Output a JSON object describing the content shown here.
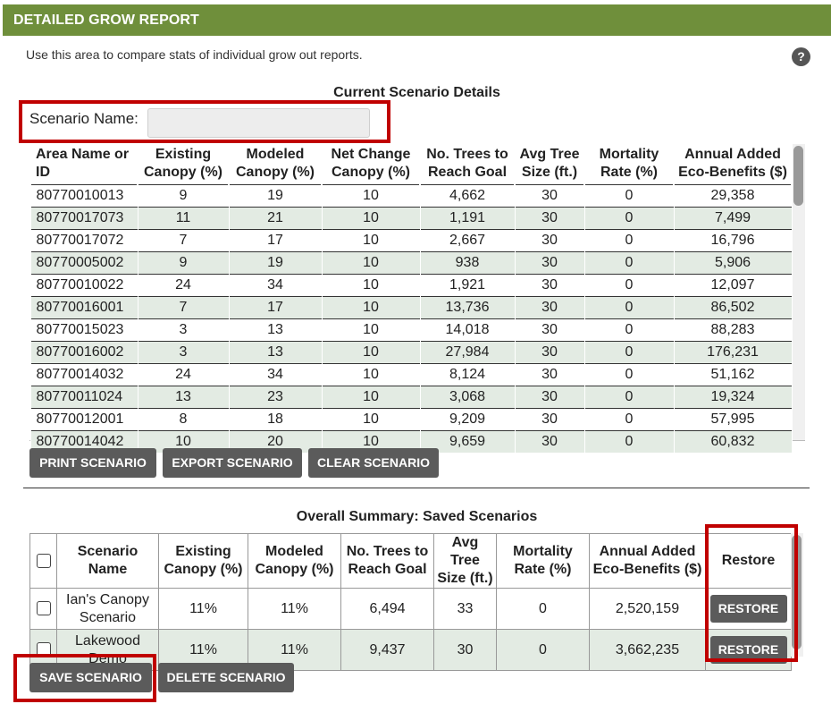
{
  "header": {
    "title": "DETAILED GROW REPORT"
  },
  "intro": "Use this area to compare stats of individual grow out reports.",
  "help_icon": {
    "name": "help-icon",
    "glyph": "?"
  },
  "current": {
    "title": "Current Scenario Details",
    "scenario_label": "Scenario Name:",
    "scenario_value": "",
    "columns": [
      [
        "Area Name or",
        "ID"
      ],
      [
        "Existing",
        "Canopy (%)"
      ],
      [
        "Modeled",
        "Canopy (%)"
      ],
      [
        "Net Change",
        "Canopy (%)"
      ],
      [
        "No. Trees to",
        "Reach Goal"
      ],
      [
        "Avg Tree",
        "Size (ft.)"
      ],
      [
        "Mortality",
        "Rate (%)"
      ],
      [
        "Annual Added",
        "Eco-Benefits ($)"
      ]
    ],
    "rows": [
      [
        "80770010013",
        "9",
        "19",
        "10",
        "4,662",
        "30",
        "0",
        "29,358"
      ],
      [
        "80770017073",
        "11",
        "21",
        "10",
        "1,191",
        "30",
        "0",
        "7,499"
      ],
      [
        "80770017072",
        "7",
        "17",
        "10",
        "2,667",
        "30",
        "0",
        "16,796"
      ],
      [
        "80770005002",
        "9",
        "19",
        "10",
        "938",
        "30",
        "0",
        "5,906"
      ],
      [
        "80770010022",
        "24",
        "34",
        "10",
        "1,921",
        "30",
        "0",
        "12,097"
      ],
      [
        "80770016001",
        "7",
        "17",
        "10",
        "13,736",
        "30",
        "0",
        "86,502"
      ],
      [
        "80770015023",
        "3",
        "13",
        "10",
        "14,018",
        "30",
        "0",
        "88,283"
      ],
      [
        "80770016002",
        "3",
        "13",
        "10",
        "27,984",
        "30",
        "0",
        "176,231"
      ],
      [
        "80770014032",
        "24",
        "34",
        "10",
        "8,124",
        "30",
        "0",
        "51,162"
      ],
      [
        "80770011024",
        "13",
        "23",
        "10",
        "3,068",
        "30",
        "0",
        "19,324"
      ],
      [
        "80770012001",
        "8",
        "18",
        "10",
        "9,209",
        "30",
        "0",
        "57,995"
      ],
      [
        "80770014042",
        "10",
        "20",
        "10",
        "9,659",
        "30",
        "0",
        "60,832"
      ]
    ],
    "buttons": {
      "print": "PRINT SCENARIO",
      "export": "EXPORT SCENARIO",
      "clear": "CLEAR SCENARIO"
    }
  },
  "summary": {
    "title": "Overall Summary: Saved Scenarios",
    "columns": [
      "",
      [
        "Scenario",
        "Name"
      ],
      [
        "Existing",
        "Canopy (%)"
      ],
      [
        "Modeled",
        "Canopy (%)"
      ],
      [
        "No. Trees to",
        "Reach Goal"
      ],
      [
        "Avg Tree",
        "Size (ft.)"
      ],
      [
        "Mortality",
        "Rate (%)"
      ],
      [
        "Annual Added",
        "Eco-Benefits ($)"
      ],
      "Restore"
    ],
    "rows": [
      {
        "name": [
          "Ian's Canopy",
          "Scenario"
        ],
        "cells": [
          "11%",
          "11%",
          "6,494",
          "33",
          "0",
          "2,520,159"
        ],
        "restore": "RESTORE"
      },
      {
        "name": [
          "Lakewood",
          "Demo"
        ],
        "cells": [
          "11%",
          "11%",
          "9,437",
          "30",
          "0",
          "3,662,235"
        ],
        "restore": "RESTORE"
      }
    ],
    "buttons": {
      "save": "SAVE SCENARIO",
      "delete": "DELETE SCENARIO"
    }
  },
  "colors": {
    "header_bg": "#6f8f3b",
    "button_bg": "#5b5b5b",
    "row_alt": "#e3ebe3",
    "highlight": "#c00000"
  }
}
